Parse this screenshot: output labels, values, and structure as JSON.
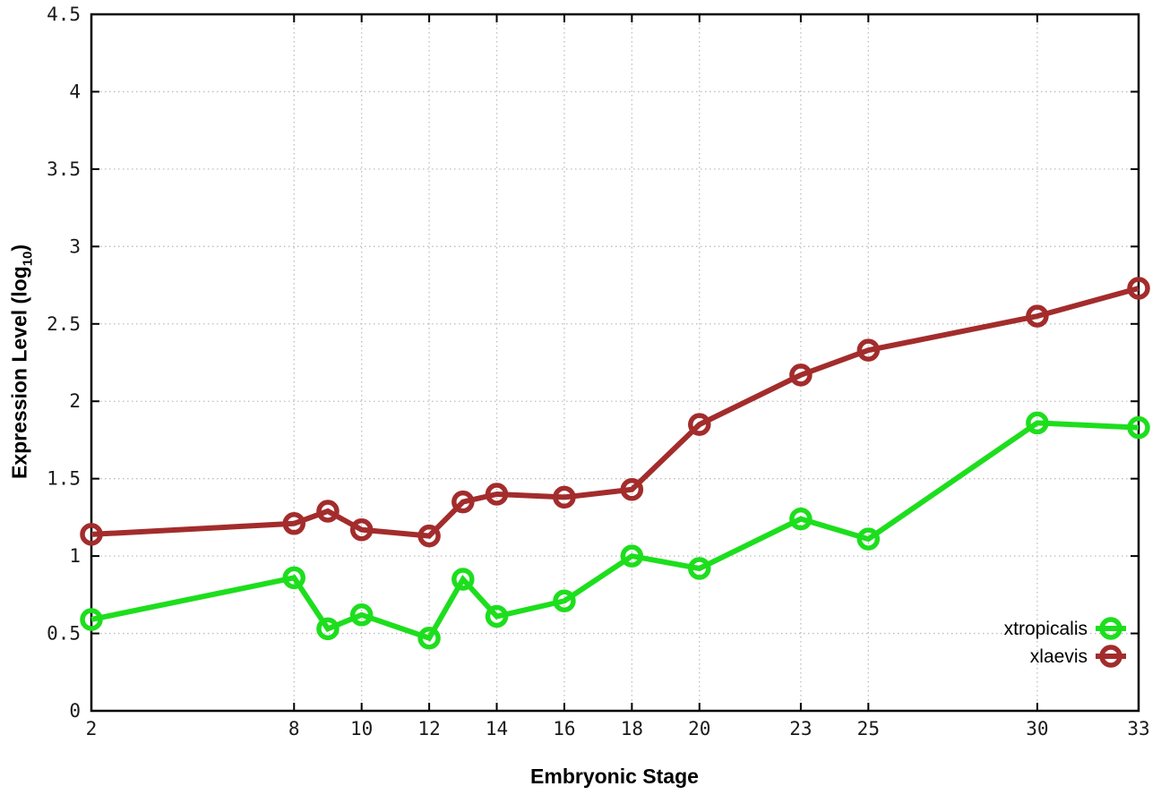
{
  "chart_data": {
    "type": "line",
    "xlabel": "Embryonic Stage",
    "ylabel": "Expression Level (log10)",
    "ylabel_parts": {
      "main": "Expression Level (log",
      "sub": "10",
      "end": ")"
    },
    "x": [
      2,
      8,
      9,
      10,
      12,
      13,
      14,
      16,
      18,
      20,
      23,
      25,
      30,
      33
    ],
    "series": [
      {
        "name": "xtropicalis",
        "color": "#1dde1d",
        "values": [
          0.59,
          0.86,
          0.53,
          0.62,
          0.47,
          0.85,
          0.61,
          0.71,
          1.0,
          0.92,
          1.24,
          1.11,
          1.86,
          1.83
        ]
      },
      {
        "name": "xlaevis",
        "color": "#a32c2c",
        "values": [
          1.14,
          1.21,
          1.29,
          1.17,
          1.13,
          1.35,
          1.4,
          1.38,
          1.43,
          1.85,
          2.17,
          2.33,
          2.55,
          2.73
        ]
      }
    ],
    "xlim": [
      2,
      33
    ],
    "ylim": [
      0,
      4.5
    ],
    "xtick_values": [
      2,
      8,
      10,
      12,
      14,
      16,
      18,
      20,
      23,
      25,
      30,
      33
    ],
    "xtick_labels": [
      "2",
      "8",
      "10",
      "12",
      "14",
      "16",
      "18",
      "20",
      "23",
      "25",
      "30",
      "33"
    ],
    "ytick_values": [
      0,
      0.5,
      1,
      1.5,
      2,
      2.5,
      3,
      3.5,
      4,
      4.5
    ],
    "ytick_labels": [
      "0",
      "0.5",
      "1",
      "1.5",
      "2",
      "2.5",
      "3",
      "3.5",
      "4",
      "4.5"
    ],
    "grid": true,
    "legend_position": "bottom-right",
    "colors": {
      "axis": "#000000",
      "grid": "#bdbdbd",
      "background": "#ffffff"
    }
  }
}
